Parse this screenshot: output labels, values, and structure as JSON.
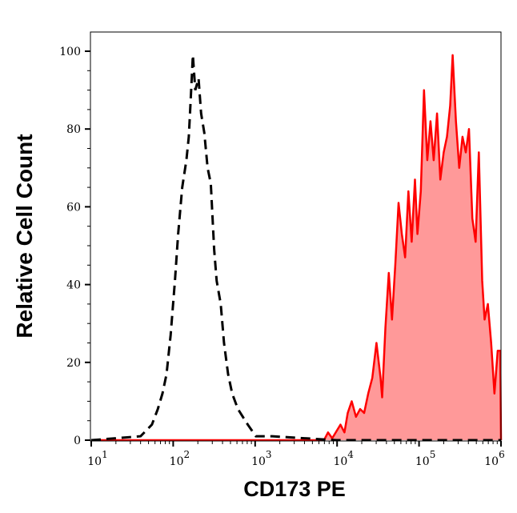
{
  "chart_data": {
    "type": "area",
    "title": "",
    "xlabel": "CD173 PE",
    "ylabel": "Relative Cell Count",
    "xscale": "log",
    "xlim": [
      10,
      1000000
    ],
    "ylim": [
      0,
      100
    ],
    "x_ticks": [
      {
        "base": "10",
        "exp": "1"
      },
      {
        "base": "10",
        "exp": "2"
      },
      {
        "base": "10",
        "exp": "3"
      },
      {
        "base": "10",
        "exp": "4"
      },
      {
        "base": "10",
        "exp": "5"
      },
      {
        "base": "10",
        "exp": "6"
      }
    ],
    "y_ticks": [
      "0",
      "20",
      "40",
      "60",
      "80",
      "100"
    ],
    "grid": false,
    "legend": "none",
    "series": [
      {
        "style": "dashed-line",
        "color": "#000000",
        "x": [
          9.8,
          20,
          40,
          55,
          65,
          74,
          83,
          93,
          105,
          115,
          129,
          145,
          155,
          162,
          174,
          186,
          204,
          219,
          240,
          263,
          288,
          316,
          339,
          380,
          417,
          468,
          525,
          617,
          708,
          813,
          1020,
          1620,
          3980,
          9770,
          1000000
        ],
        "y": [
          0,
          0.5,
          1,
          4,
          8,
          12,
          17,
          27,
          41,
          53,
          65,
          72,
          78,
          86,
          99,
          90,
          93,
          84,
          79,
          70,
          66,
          49,
          41,
          35,
          25,
          17,
          12,
          8,
          6,
          4,
          1,
          1,
          0.5,
          0,
          0
        ]
      },
      {
        "style": "filled-area",
        "color": "#ff0000",
        "fill": "#ff9999",
        "x": [
          9.8,
          6920,
          7760,
          8710,
          11000,
          12300,
          13500,
          15100,
          17000,
          19100,
          21400,
          24000,
          26900,
          30200,
          33900,
          35500,
          38900,
          42700,
          46800,
          51300,
          56200,
          61700,
          67600,
          74100,
          81300,
          89100,
          95500,
          105000,
          115000,
          126000,
          138000,
          151000,
          166000,
          182000,
          200000,
          219000,
          240000,
          257000,
          282000,
          309000,
          339000,
          372000,
          407000,
          447000,
          490000,
          537000,
          589000,
          631000,
          692000,
          759000,
          832000,
          912000,
          977000,
          1000000
        ],
        "y": [
          0,
          0,
          2,
          0.5,
          4,
          2,
          7,
          10,
          6,
          8,
          7,
          12,
          16,
          25,
          16,
          11,
          29,
          43,
          31,
          45,
          61,
          53,
          47,
          64,
          51,
          67,
          53,
          64,
          90,
          72,
          82,
          72,
          84,
          67,
          74,
          78,
          86,
          99,
          82,
          70,
          78,
          74,
          80,
          57,
          51,
          74,
          41,
          31,
          35,
          25,
          12,
          23,
          23,
          0
        ]
      }
    ]
  }
}
